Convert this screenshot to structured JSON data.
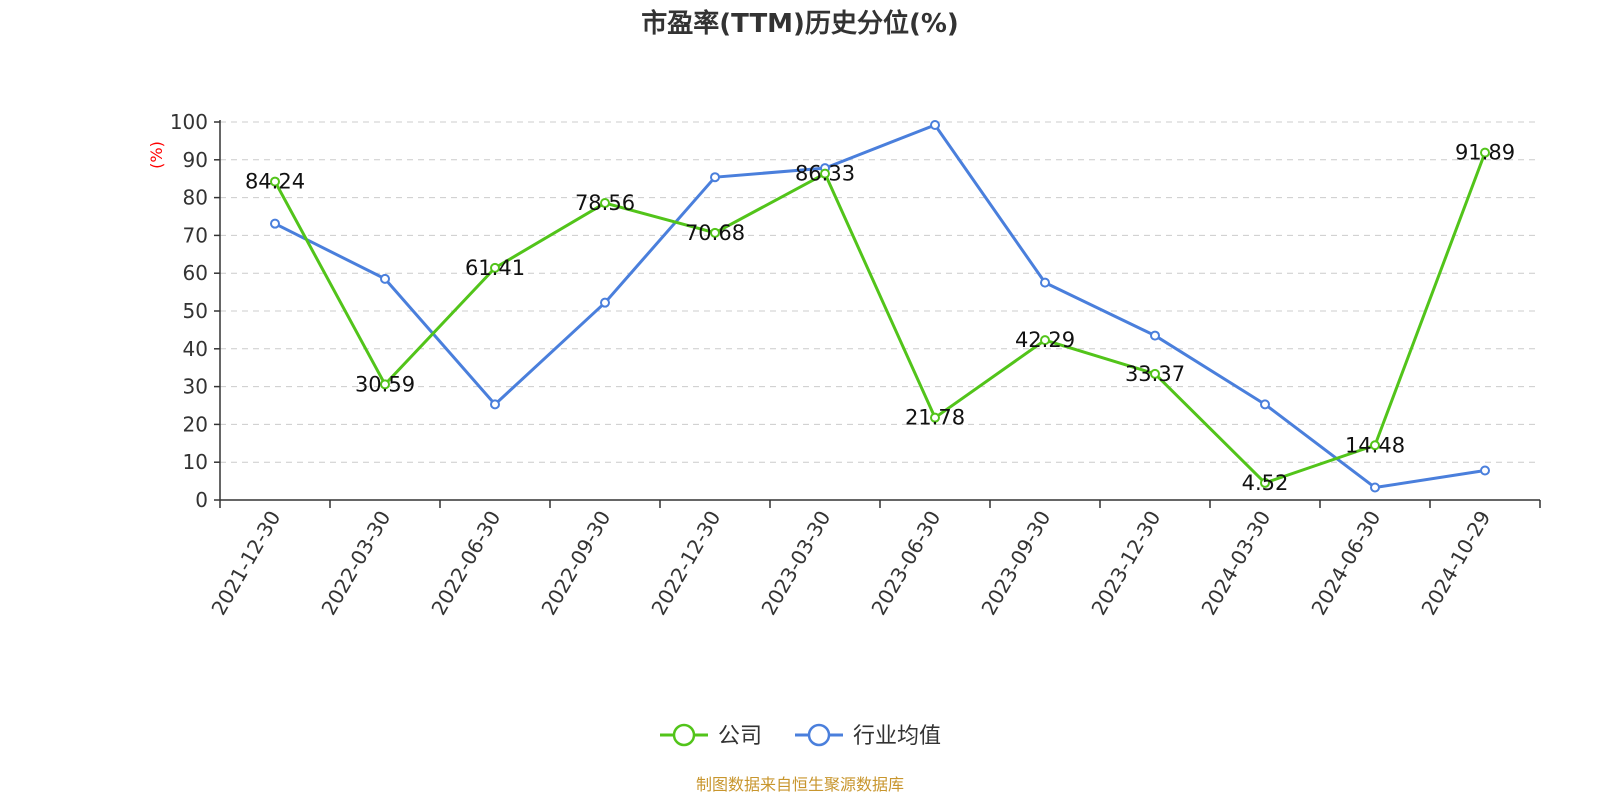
{
  "chart_data": {
    "type": "line",
    "title": "市盈率(TTM)历史分位(%)",
    "ylabel": "(%)",
    "xlabel": "",
    "ylim": [
      0,
      100
    ],
    "yticks": [
      0,
      10,
      20,
      30,
      40,
      50,
      60,
      70,
      80,
      90,
      100
    ],
    "grid": true,
    "legend_position": "bottom",
    "categories": [
      "2021-12-30",
      "2022-03-30",
      "2022-06-30",
      "2022-09-30",
      "2022-12-30",
      "2023-03-30",
      "2023-06-30",
      "2023-09-30",
      "2023-12-30",
      "2024-03-30",
      "2024-06-30",
      "2024-10-29"
    ],
    "series": [
      {
        "name": "公司",
        "color": "#52c41a",
        "values": [
          84.24,
          30.59,
          61.41,
          78.56,
          70.68,
          86.33,
          21.78,
          42.29,
          33.37,
          4.52,
          14.48,
          91.89
        ],
        "labels": [
          "84.24",
          "30.59",
          "61.41",
          "78.56",
          "70.68",
          "86.33",
          "21.78",
          "42.29",
          "33.37",
          "4.52",
          "14.48",
          "91.89"
        ]
      },
      {
        "name": "行业均值",
        "color": "#4a7fdc",
        "values": [
          73.1,
          58.5,
          25.3,
          52.2,
          85.4,
          87.8,
          99.2,
          57.5,
          43.5,
          25.3,
          3.3,
          7.8
        ]
      }
    ]
  },
  "footer": {
    "source": "制图数据来自恒生聚源数据库"
  }
}
